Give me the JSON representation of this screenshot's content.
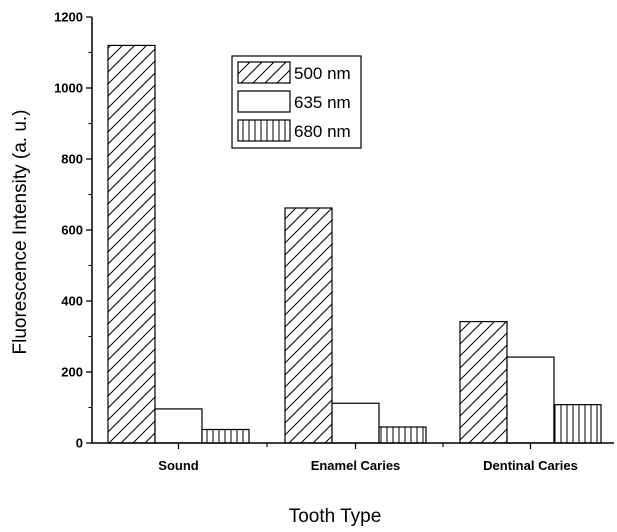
{
  "chart_data": {
    "type": "bar",
    "title": "",
    "xlabel": "Tooth Type",
    "ylabel": "Fluorescence  Intensity (a. u.)",
    "categories": [
      "Sound",
      "Enamel Caries",
      "Dentinal Caries"
    ],
    "series": [
      {
        "name": "500 nm",
        "values": [
          1120,
          662,
          342
        ],
        "fill": "diagonal-hatch"
      },
      {
        "name": "635 nm",
        "values": [
          96,
          112,
          242
        ],
        "fill": "white"
      },
      {
        "name": "680 nm",
        "values": [
          38,
          45,
          108
        ],
        "fill": "vertical-hatch"
      }
    ],
    "ylim": [
      0,
      1200
    ],
    "yticks": [
      0,
      200,
      400,
      600,
      800,
      1000,
      1200
    ],
    "grid": false,
    "legend": "top-center"
  }
}
